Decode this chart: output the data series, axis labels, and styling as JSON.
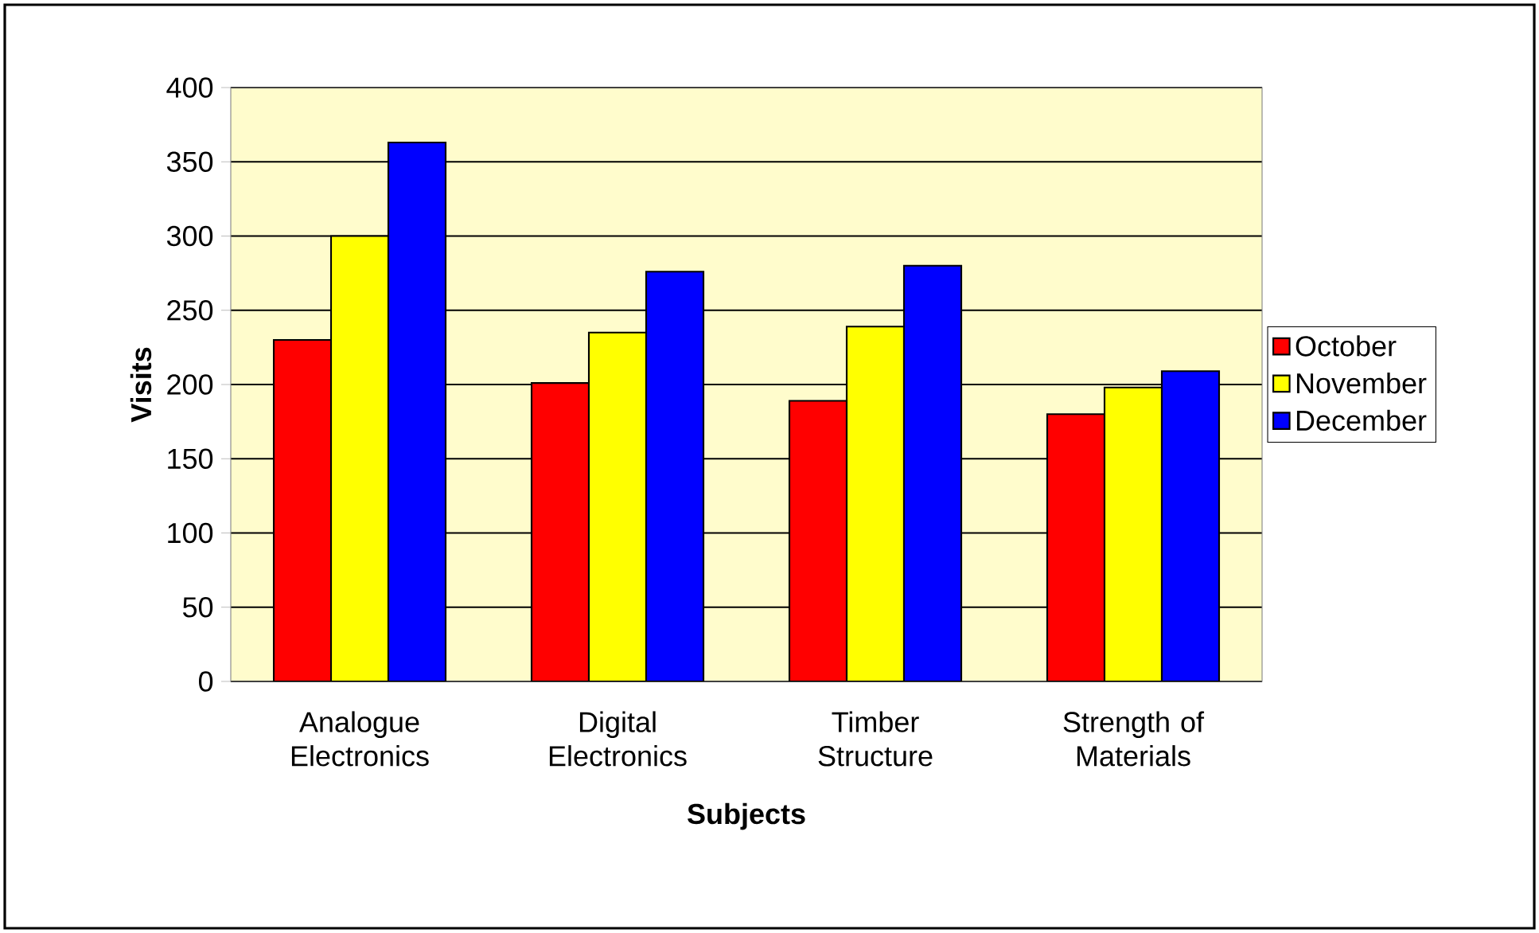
{
  "chart_data": {
    "type": "bar",
    "xlabel": "Subjects",
    "ylabel": "Visits",
    "categories": [
      "Analogue Electronics",
      "Digital Electronics",
      "Timber Structure",
      "Strength of Materials"
    ],
    "series": [
      {
        "name": "October",
        "color": "#ff0000",
        "values": [
          230,
          201,
          189,
          180
        ]
      },
      {
        "name": "November",
        "color": "#ffff00",
        "values": [
          300,
          235,
          239,
          198
        ]
      },
      {
        "name": "December",
        "color": "#0000ff",
        "values": [
          363,
          276,
          280,
          209
        ]
      }
    ],
    "ylim": [
      0,
      400
    ],
    "yticks": [
      0,
      50,
      100,
      150,
      200,
      250,
      300,
      350,
      400
    ],
    "grid": "y",
    "legend": "right"
  }
}
